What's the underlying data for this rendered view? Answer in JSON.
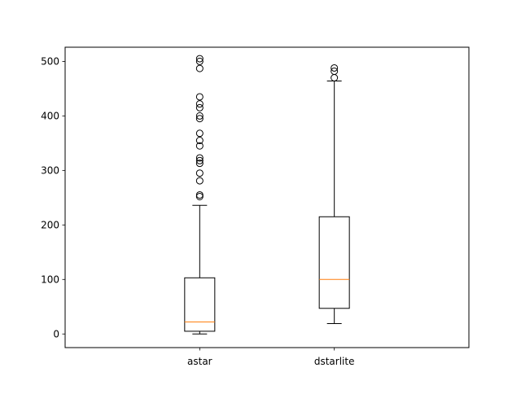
{
  "chart_data": {
    "type": "boxplot",
    "title": "",
    "xlabel": "",
    "ylabel": "",
    "ylim": [
      -25,
      526
    ],
    "yticks": [
      0,
      100,
      200,
      300,
      400,
      500
    ],
    "grid": false,
    "categories": [
      "astar",
      "dstarlite"
    ],
    "boxes": [
      {
        "label": "astar",
        "whisker_low": 0,
        "q1": 5,
        "median": 22,
        "q3": 103,
        "whisker_high": 236,
        "fliers": [
          252,
          255,
          281,
          295,
          313,
          318,
          323,
          345,
          355,
          368,
          395,
          400,
          415,
          422,
          435,
          487,
          500,
          505
        ]
      },
      {
        "label": "dstarlite",
        "whisker_low": 19,
        "q1": 47,
        "median": 100,
        "q3": 215,
        "whisker_high": 464,
        "fliers": [
          470,
          482,
          488
        ]
      }
    ],
    "colors": {
      "box": "#000000",
      "median": "#ff7f0e",
      "flier": "#000000"
    }
  }
}
